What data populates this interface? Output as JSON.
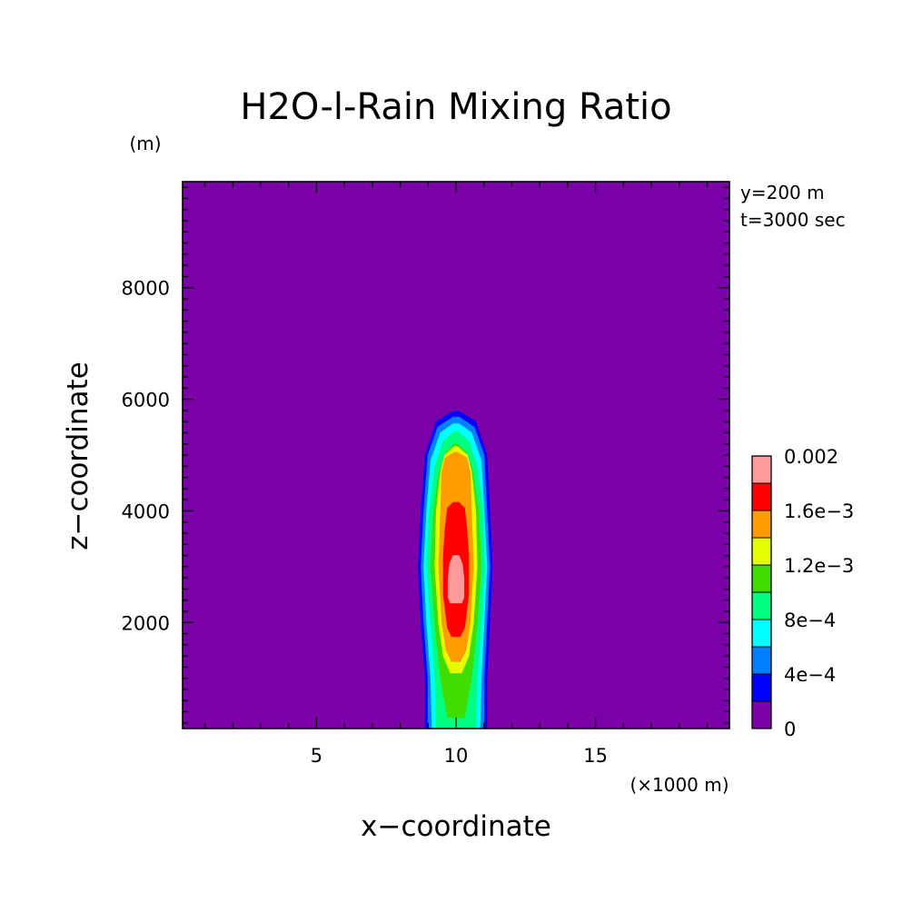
{
  "chart_data": {
    "type": "heatmap",
    "title": "H2O-l-Rain Mixing Ratio",
    "xlabel": "x−coordinate",
    "ylabel": "z−coordinate",
    "x_unit_label": "(×1000 m)",
    "y_unit_label": "(m)",
    "annotations": [
      "y=200 m",
      "t=3000 sec"
    ],
    "xlim": [
      0.2,
      19.8
    ],
    "ylim": [
      100,
      9900
    ],
    "x_ticks": [
      {
        "value": 5,
        "label": "5"
      },
      {
        "value": 10,
        "label": "10"
      },
      {
        "value": 15,
        "label": "15"
      }
    ],
    "y_ticks": [
      {
        "value": 2000,
        "label": "2000"
      },
      {
        "value": 4000,
        "label": "4000"
      },
      {
        "value": 6000,
        "label": "6000"
      },
      {
        "value": 8000,
        "label": "8000"
      }
    ],
    "x_minor_step": 1,
    "y_minor_step": 200,
    "grid": false,
    "colorbar": {
      "levels": [
        0,
        0.0002,
        0.0004,
        0.0006,
        0.0008,
        0.001,
        0.0012,
        0.0014,
        0.0016,
        0.0018,
        0.002
      ],
      "colors": [
        "#7b00a8",
        "#0000ff",
        "#0080ff",
        "#00ffff",
        "#00ff80",
        "#40dd00",
        "#e6ff00",
        "#ff9d00",
        "#ff0000",
        "#ff9a9a"
      ],
      "labels": [
        {
          "value": 0,
          "text": "0"
        },
        {
          "value": 0.0004,
          "text": "4e−4"
        },
        {
          "value": 0.0008,
          "text": "8e−4"
        },
        {
          "value": 0.0012,
          "text": "1.2e−3"
        },
        {
          "value": 0.0016,
          "text": "1.6e−3"
        },
        {
          "value": 0.002,
          "text": "0.002"
        }
      ]
    },
    "contour_bands": [
      {
        "level": 0.0002,
        "color": "#0000ff",
        "profile": [
          [
            100,
            8.9,
            11.1
          ],
          [
            1000,
            8.9,
            11.1
          ],
          [
            2000,
            8.75,
            11.2
          ],
          [
            3000,
            8.65,
            11.3
          ],
          [
            4000,
            8.75,
            11.2
          ],
          [
            5000,
            8.9,
            11.1
          ],
          [
            5600,
            9.3,
            10.7
          ],
          [
            5780,
            9.9,
            10.1
          ]
        ]
      },
      {
        "level": 0.0004,
        "color": "#0080ff",
        "profile": [
          [
            100,
            9.0,
            11.0
          ],
          [
            1000,
            9.0,
            11.0
          ],
          [
            2000,
            8.85,
            11.1
          ],
          [
            3000,
            8.75,
            11.2
          ],
          [
            4000,
            8.85,
            11.1
          ],
          [
            5000,
            9.0,
            11.0
          ],
          [
            5500,
            9.35,
            10.65
          ],
          [
            5680,
            9.9,
            10.1
          ]
        ]
      },
      {
        "level": 0.0006,
        "color": "#00ffff",
        "profile": [
          [
            100,
            9.15,
            10.85
          ],
          [
            1000,
            9.1,
            10.9
          ],
          [
            2000,
            8.95,
            11.0
          ],
          [
            3000,
            8.85,
            11.1
          ],
          [
            4000,
            8.95,
            11.0
          ],
          [
            4900,
            9.1,
            10.9
          ],
          [
            5400,
            9.45,
            10.55
          ],
          [
            5560,
            9.9,
            10.1
          ]
        ]
      },
      {
        "level": 0.0008,
        "color": "#00ff80",
        "profile": [
          [
            100,
            9.3,
            10.7
          ],
          [
            1000,
            9.25,
            10.75
          ],
          [
            2000,
            9.1,
            10.9
          ],
          [
            3000,
            8.95,
            11.0
          ],
          [
            4000,
            9.05,
            10.95
          ],
          [
            4800,
            9.25,
            10.75
          ],
          [
            5250,
            9.55,
            10.45
          ],
          [
            5420,
            9.95,
            10.05
          ]
        ]
      },
      {
        "level": 0.001,
        "color": "#40dd00",
        "profile": [
          [
            300,
            9.7,
            10.3
          ],
          [
            1000,
            9.45,
            10.55
          ],
          [
            2000,
            9.25,
            10.75
          ],
          [
            3000,
            9.1,
            10.9
          ],
          [
            4000,
            9.2,
            10.8
          ],
          [
            4700,
            9.4,
            10.6
          ],
          [
            5050,
            9.65,
            10.35
          ],
          [
            5200,
            9.95,
            10.05
          ]
        ]
      },
      {
        "level": 0.0012,
        "color": "#e6ff00",
        "profile": [
          [
            1100,
            9.8,
            10.2
          ],
          [
            1400,
            9.55,
            10.45
          ],
          [
            2000,
            9.38,
            10.62
          ],
          [
            3000,
            9.25,
            10.75
          ],
          [
            4000,
            9.3,
            10.7
          ],
          [
            4700,
            9.45,
            10.55
          ],
          [
            5000,
            9.6,
            10.4
          ],
          [
            5150,
            9.95,
            10.05
          ]
        ]
      },
      {
        "level": 0.0014,
        "color": "#ff9d00",
        "profile": [
          [
            1300,
            9.85,
            10.15
          ],
          [
            1500,
            9.65,
            10.35
          ],
          [
            2000,
            9.5,
            10.5
          ],
          [
            3000,
            9.38,
            10.62
          ],
          [
            4000,
            9.45,
            10.55
          ],
          [
            4700,
            9.5,
            10.5
          ],
          [
            4950,
            9.62,
            10.38
          ],
          [
            5050,
            9.95,
            10.05
          ]
        ]
      },
      {
        "level": 0.0016,
        "color": "#ff0000",
        "profile": [
          [
            1750,
            9.85,
            10.15
          ],
          [
            1900,
            9.7,
            10.3
          ],
          [
            2500,
            9.55,
            10.45
          ],
          [
            3200,
            9.55,
            10.45
          ],
          [
            3700,
            9.62,
            10.38
          ],
          [
            4050,
            9.7,
            10.3
          ],
          [
            4150,
            9.9,
            10.1
          ]
        ]
      },
      {
        "level": 0.0018,
        "color": "#ff9a9a",
        "profile": [
          [
            2350,
            9.8,
            10.2
          ],
          [
            2450,
            9.72,
            10.28
          ],
          [
            2800,
            9.72,
            10.28
          ],
          [
            3050,
            9.78,
            10.22
          ],
          [
            3200,
            9.9,
            10.1
          ]
        ]
      }
    ]
  }
}
